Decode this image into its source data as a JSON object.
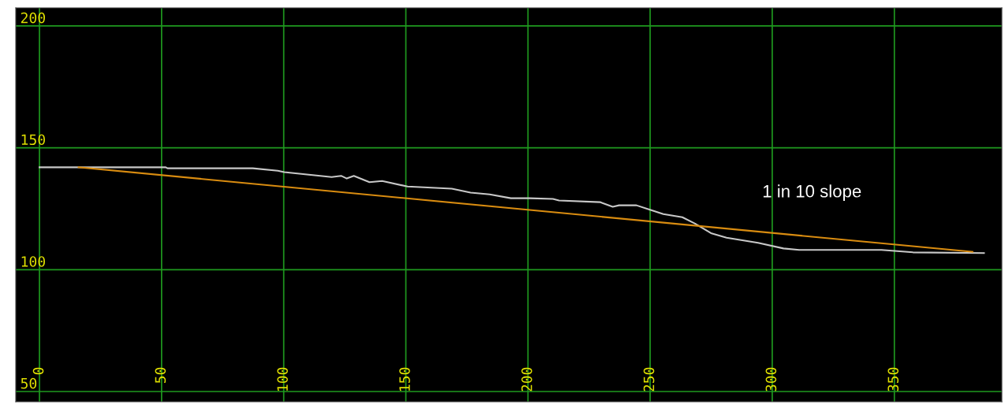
{
  "chart_data": {
    "type": "line",
    "series": [
      {
        "color": "#c8c8c8",
        "x": [
          0,
          51.7,
          52.4,
          87.3,
          97.6,
          100.2,
          119.6,
          123.5,
          125.8,
          128.7,
          135.1,
          140.3,
          150.7,
          168.8,
          176.5,
          184.3,
          193,
          200.5,
          210.2,
          212.7,
          229.5,
          234.7,
          237.3,
          244.4,
          250.2,
          255.4,
          263.2,
          268.4,
          274.9,
          281.3,
          294.2,
          304.6,
          311,
          344.7,
          357.6,
          386.7
        ],
        "values": [
          142.0,
          142.0,
          141.6,
          141.6,
          140.6,
          140.0,
          138.0,
          138.5,
          137.4,
          138.5,
          135.9,
          136.4,
          134.1,
          133.2,
          131.6,
          130.9,
          129.3,
          129.3,
          129.0,
          128.4,
          127.7,
          125.8,
          126.4,
          126.4,
          124.5,
          122.8,
          121.5,
          118.9,
          115.0,
          113.1,
          111.0,
          108.7,
          108.1,
          108.1,
          107.1,
          106.8
        ]
      },
      {
        "color": "#d98c10",
        "x": [
          16,
          382
        ],
        "values": [
          142.0,
          107.3
        ]
      }
    ],
    "xlim": [
      -9.7,
      394
    ],
    "ylim": [
      45.8,
      207.4
    ],
    "xticks": [
      0,
      50,
      100,
      150,
      200,
      250,
      300,
      350
    ],
    "yticks": [
      50,
      100,
      150,
      200
    ],
    "grid": true,
    "marker": "none",
    "line_style": "solid",
    "annotations": [
      "1 in 10 slope"
    ]
  }
}
